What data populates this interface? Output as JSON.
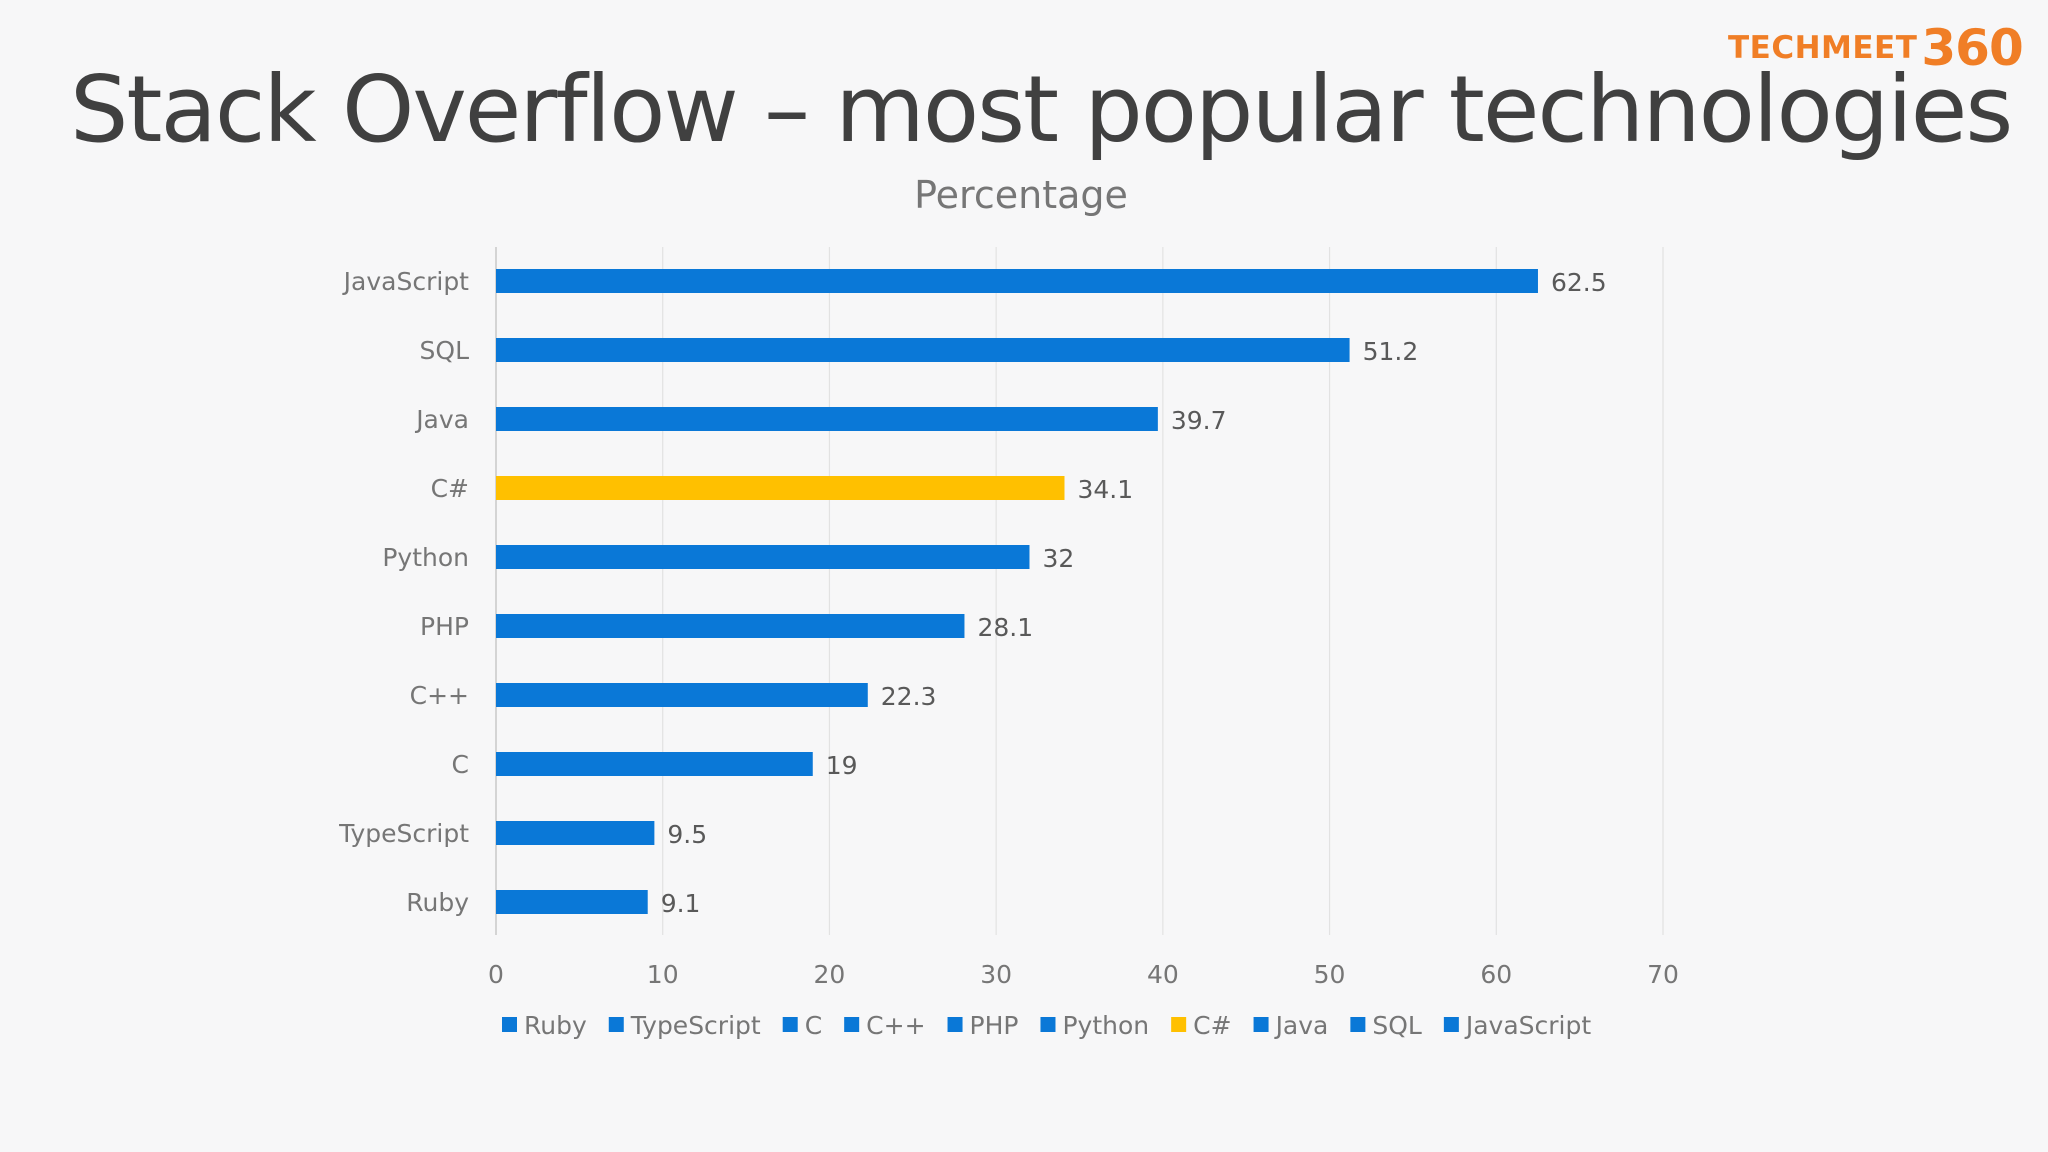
{
  "slide": {
    "title": "Stack Overflow – most popular technologies",
    "logo_word": "TECHMEET",
    "logo_number": "360"
  },
  "colors": {
    "default_bar": "#0a78d7",
    "highlight_bar": "#ffc000",
    "logo": "#f07e26"
  },
  "chart_data": {
    "type": "bar",
    "orientation": "horizontal",
    "title": "Percentage",
    "xlabel": "",
    "ylabel": "",
    "categories": [
      "JavaScript",
      "SQL",
      "Java",
      "C#",
      "Python",
      "PHP",
      "C++",
      "C",
      "TypeScript",
      "Ruby"
    ],
    "values": [
      62.5,
      51.2,
      39.7,
      34.1,
      32,
      28.1,
      22.3,
      19,
      9.5,
      9.1
    ],
    "highlight": [
      "C#"
    ],
    "xlim": [
      0,
      70
    ],
    "xticks": [
      0,
      10,
      20,
      30,
      40,
      50,
      60,
      70
    ],
    "grid": true,
    "legend_position": "bottom",
    "legend": [
      "Ruby",
      "TypeScript",
      "C",
      "C++",
      "PHP",
      "Python",
      "C#",
      "Java",
      "SQL",
      "JavaScript"
    ]
  }
}
